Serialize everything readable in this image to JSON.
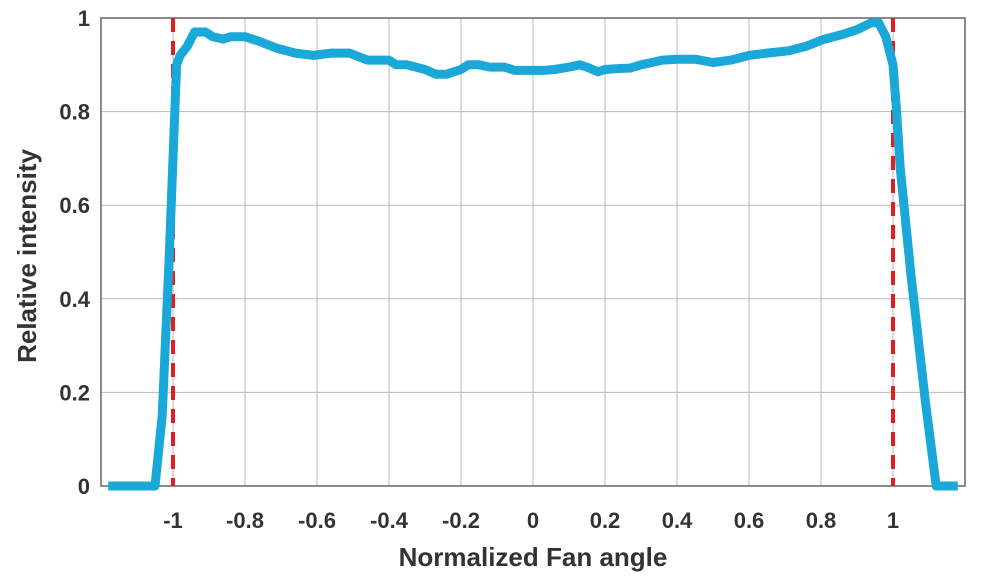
{
  "chart_data": {
    "type": "line",
    "title": "",
    "xlabel": "Normalized Fan angle",
    "ylabel": "Relative intensity",
    "xlim": [
      -1.2,
      1.2
    ],
    "ylim": [
      0,
      1
    ],
    "x_ticks": [
      -1,
      -0.8,
      -0.6,
      -0.4,
      -0.2,
      0,
      0.2,
      0.4,
      0.6,
      0.8,
      1
    ],
    "x_tick_labels": [
      "-1",
      "-0.8",
      "-0.6",
      "-0.4",
      "-0.2",
      "0",
      "0.2",
      "0.4",
      "0.6",
      "0.8",
      "1"
    ],
    "y_ticks": [
      0,
      0.2,
      0.4,
      0.6,
      0.8,
      1
    ],
    "y_tick_labels": [
      "0",
      "0.2",
      "0.4",
      "0.6",
      "0.8",
      "1"
    ],
    "grid": true,
    "series": [
      {
        "color": "#1aa8d8",
        "x": [
          -1.18,
          -1.05,
          -1.03,
          -1.01,
          -0.99,
          -0.98,
          -0.96,
          -0.94,
          -0.91,
          -0.89,
          -0.86,
          -0.84,
          -0.8,
          -0.76,
          -0.71,
          -0.66,
          -0.61,
          -0.56,
          -0.51,
          -0.46,
          -0.44,
          -0.4,
          -0.38,
          -0.35,
          -0.3,
          -0.27,
          -0.24,
          -0.2,
          -0.18,
          -0.15,
          -0.12,
          -0.08,
          -0.05,
          -0.03,
          0,
          0.03,
          0.06,
          0.1,
          0.13,
          0.15,
          0.18,
          0.2,
          0.24,
          0.27,
          0.3,
          0.33,
          0.36,
          0.4,
          0.45,
          0.5,
          0.55,
          0.6,
          0.65,
          0.71,
          0.76,
          0.81,
          0.86,
          0.9,
          0.94,
          0.96,
          0.98,
          0.99,
          1.0,
          1.01,
          1.02,
          1.05,
          1.09,
          1.12,
          1.18
        ],
        "y": [
          0,
          0,
          0.15,
          0.5,
          0.9,
          0.92,
          0.94,
          0.97,
          0.97,
          0.96,
          0.955,
          0.96,
          0.96,
          0.95,
          0.935,
          0.925,
          0.92,
          0.925,
          0.925,
          0.91,
          0.91,
          0.91,
          0.9,
          0.9,
          0.89,
          0.88,
          0.88,
          0.89,
          0.9,
          0.9,
          0.895,
          0.895,
          0.888,
          0.888,
          0.888,
          0.888,
          0.89,
          0.895,
          0.9,
          0.895,
          0.885,
          0.89,
          0.892,
          0.893,
          0.9,
          0.905,
          0.91,
          0.912,
          0.912,
          0.905,
          0.91,
          0.92,
          0.925,
          0.93,
          0.94,
          0.955,
          0.965,
          0.975,
          0.99,
          0.99,
          0.96,
          0.93,
          0.9,
          0.8,
          0.68,
          0.45,
          0.18,
          0,
          0
        ]
      }
    ],
    "reference_lines": [
      {
        "x": -1,
        "color": "#e02020",
        "style": "dashed"
      },
      {
        "x": 1,
        "color": "#e02020",
        "style": "dashed"
      }
    ]
  }
}
